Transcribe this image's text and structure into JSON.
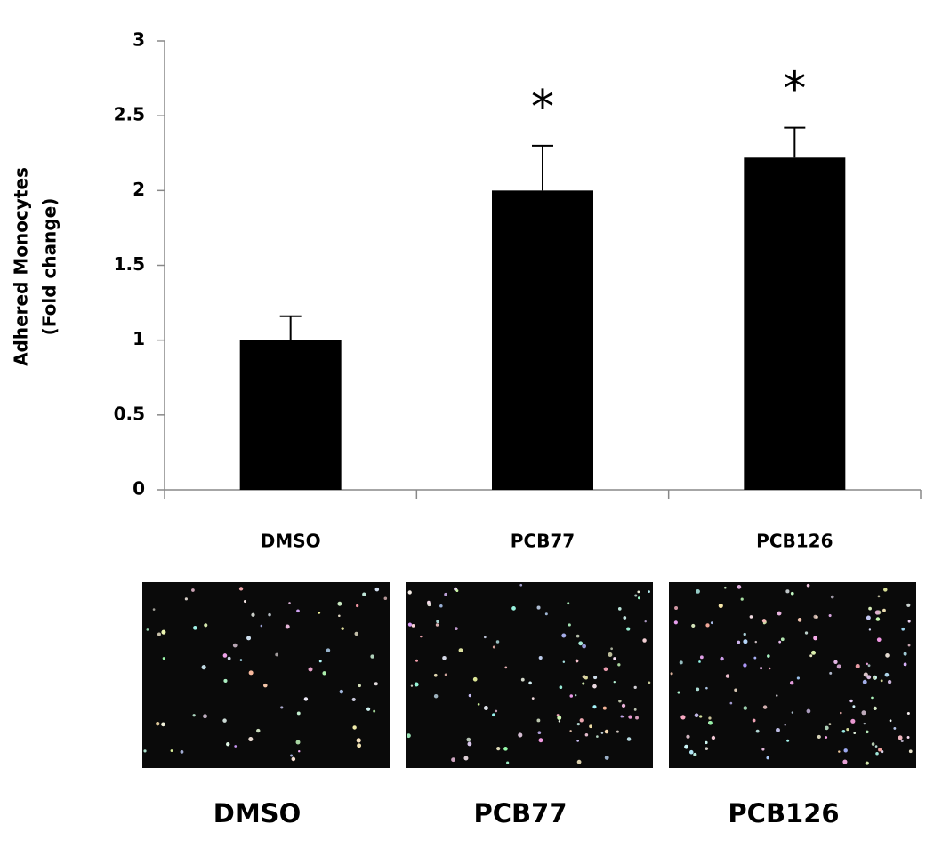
{
  "chart_data": {
    "type": "bar",
    "ylabel": [
      "Adhered Monocytes",
      "(Fold change)"
    ],
    "categories": [
      "DMSO",
      "PCB77",
      "PCB126"
    ],
    "values": [
      1.0,
      2.0,
      2.22
    ],
    "errors": [
      0.16,
      0.3,
      0.2
    ],
    "significance": [
      null,
      "*",
      "*"
    ],
    "color": "#000000",
    "ylim": [
      0,
      3
    ],
    "yticks": [
      0,
      0.5,
      1,
      1.5,
      2,
      2.5,
      3
    ],
    "grid": false,
    "image_labels": [
      "DMSO",
      "PCB77",
      "PCB126"
    ]
  }
}
